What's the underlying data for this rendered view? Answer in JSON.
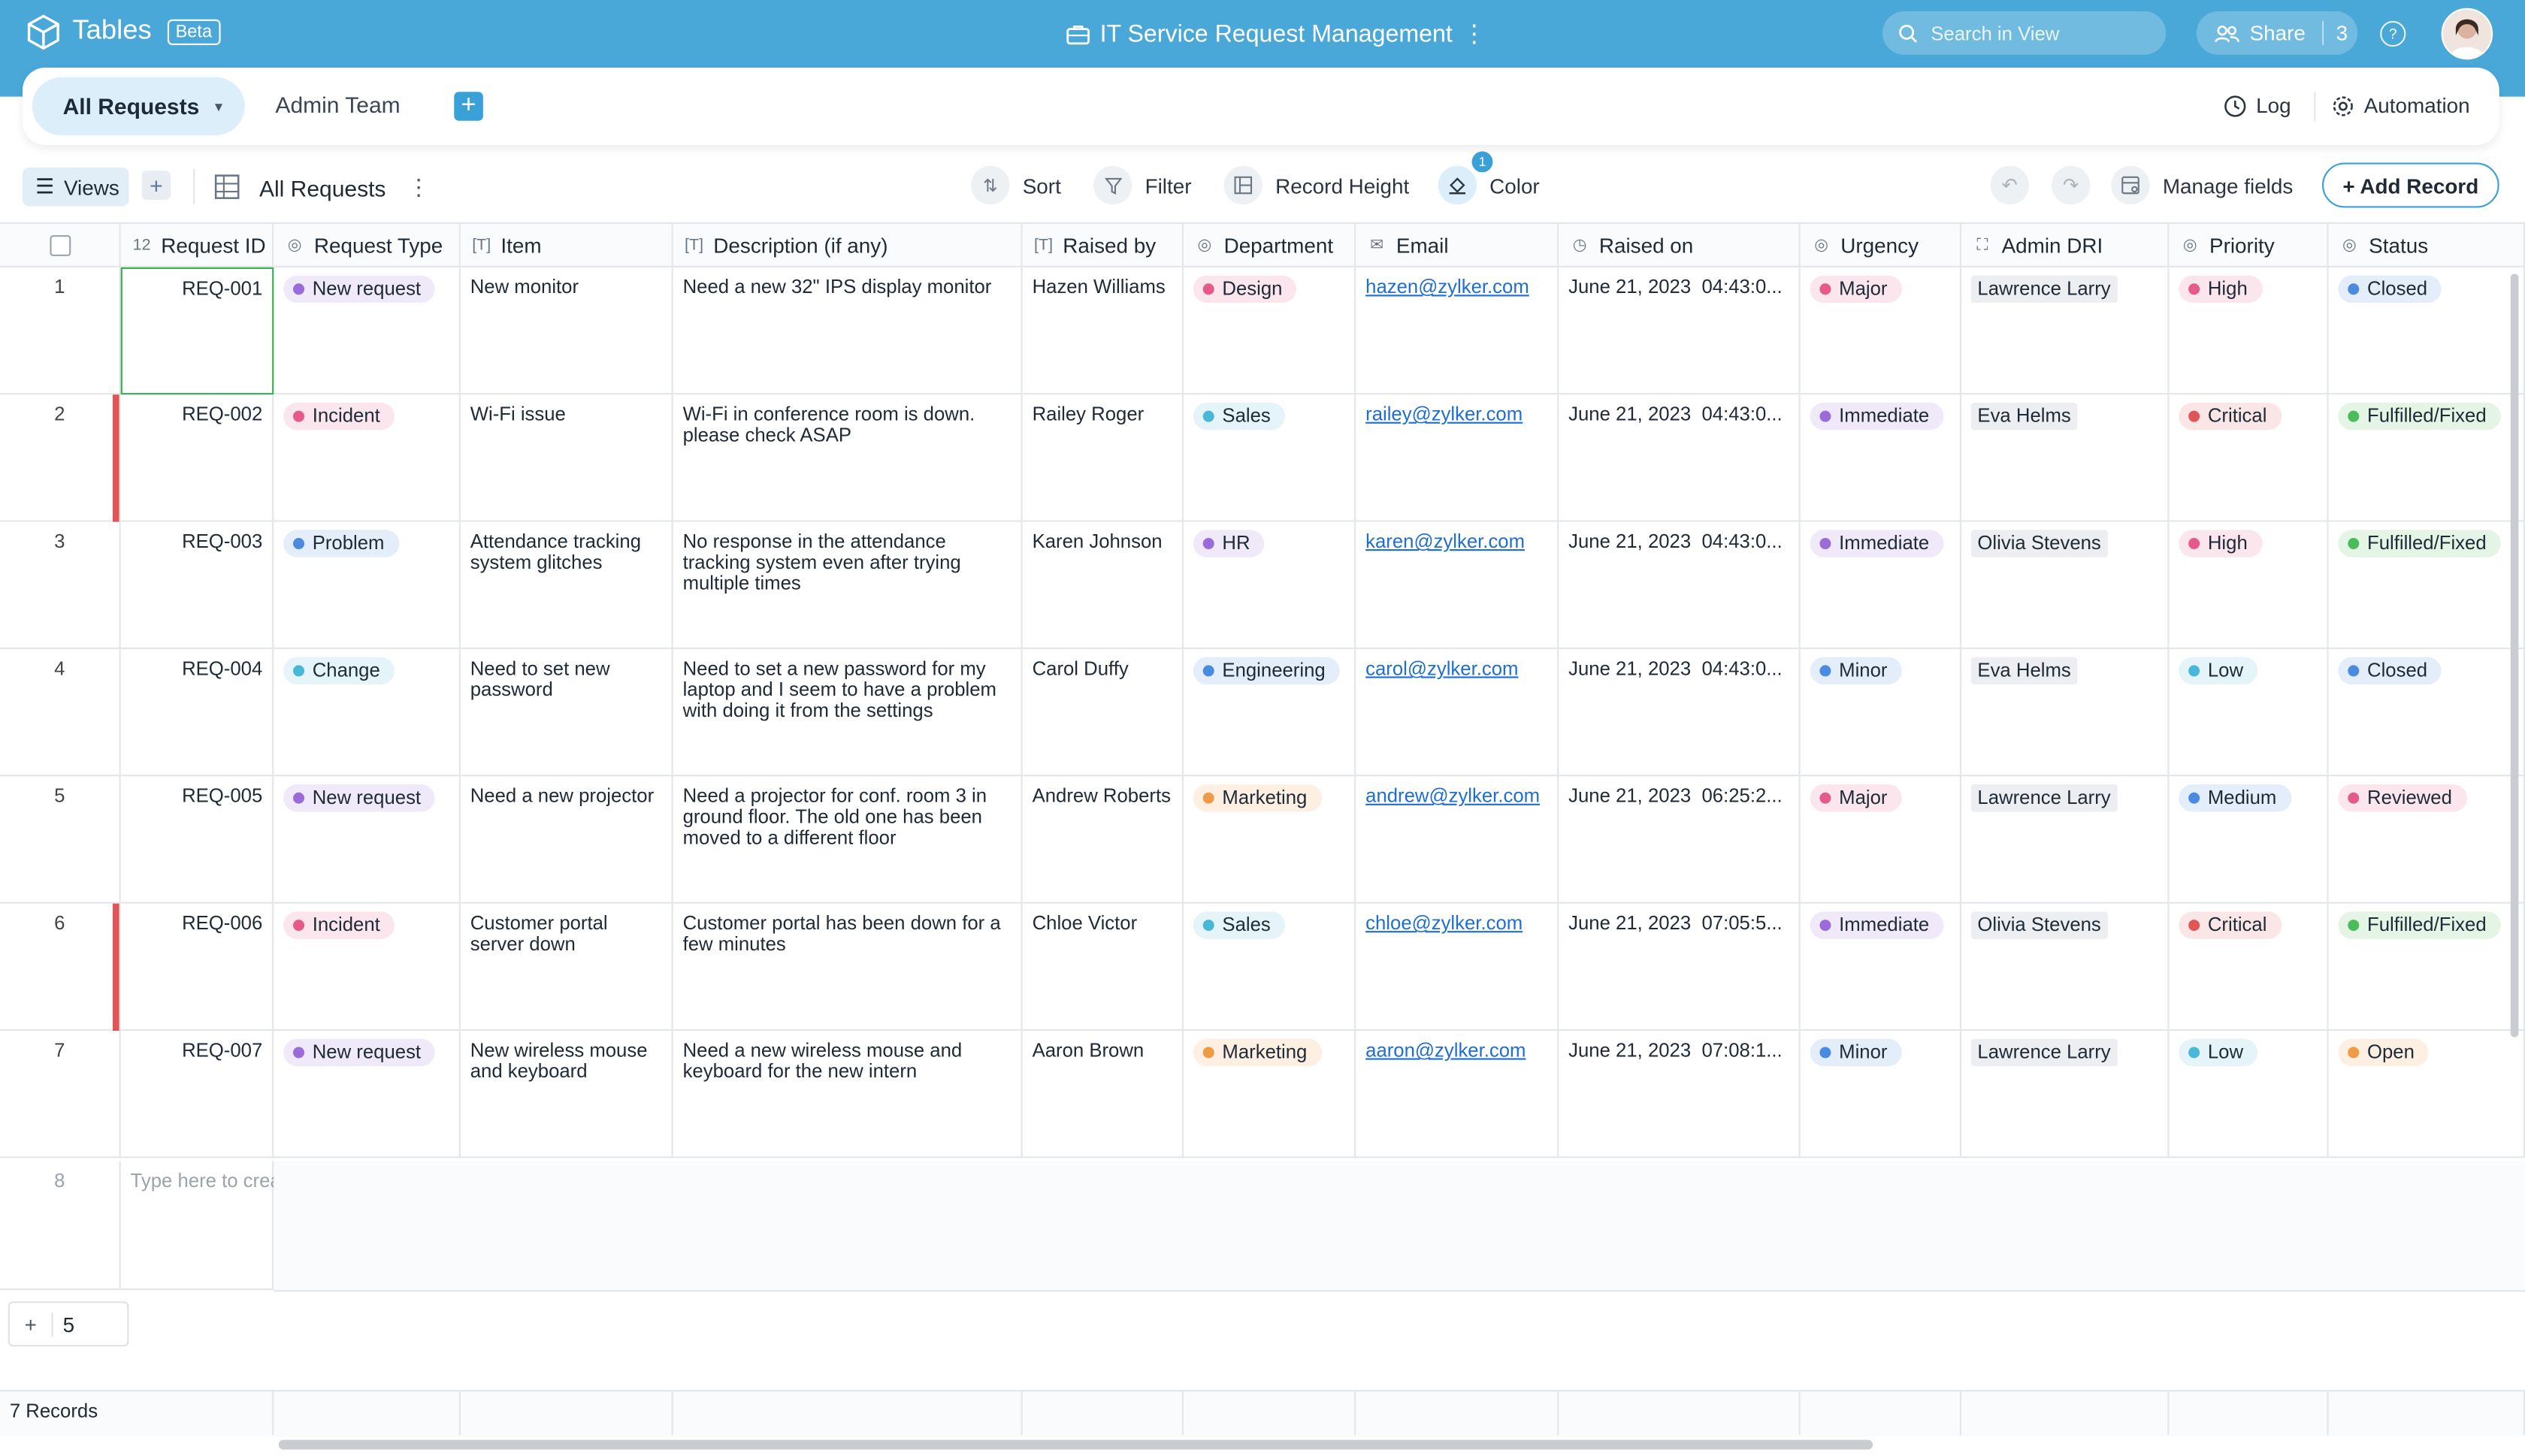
{
  "app": {
    "name": "Tables",
    "badge": "Beta"
  },
  "document": {
    "title": "IT Service Request Management"
  },
  "search": {
    "placeholder": "Search in View"
  },
  "share": {
    "label": "Share",
    "count": "3"
  },
  "tabs": [
    {
      "label": "All Requests",
      "active": true
    },
    {
      "label": "Admin Team",
      "active": false
    }
  ],
  "top_actions": {
    "log": "Log",
    "automation": "Automation"
  },
  "toolbar": {
    "views": "Views",
    "view_name": "All Requests",
    "sort": "Sort",
    "filter": "Filter",
    "record_height": "Record Height",
    "color": "Color",
    "color_badge": "1",
    "manage_fields": "Manage fields",
    "add_record": "+ Add Record"
  },
  "columns": [
    "Request ID",
    "Request Type",
    "Item",
    "Description (if any)",
    "Raised by",
    "Department",
    "Email",
    "Raised on",
    "Urgency",
    "Admin DRI",
    "Priority",
    "Status"
  ],
  "column_icons": [
    "number-icon",
    "single-select-icon",
    "text-icon",
    "text-icon",
    "text-icon",
    "single-select-icon",
    "email-icon",
    "datetime-icon",
    "single-select-icon",
    "user-icon",
    "single-select-icon",
    "single-select-icon"
  ],
  "colors": {
    "purple": "#9b6bd9",
    "pink": "#e55a8a",
    "teal": "#49b8d8",
    "blue": "#4a8be0",
    "orange": "#ef9b46",
    "red": "#e05555",
    "green": "#4cbb5a",
    "accent": "#3aa0d8"
  },
  "rows": [
    {
      "num": "1",
      "id": "REQ-001",
      "type": "New request",
      "type_color": "purple",
      "item": "New monitor",
      "desc": "Need a new 32\" IPS display monitor",
      "raised_by": "Hazen Williams",
      "dept": "Design",
      "dept_color": "pink",
      "email": "hazen@zylker.com",
      "date": "June 21, 2023",
      "time": "04:43:0...",
      "urgency": "Major",
      "urgency_color": "pink",
      "dri": "Lawrence Larry",
      "priority": "High",
      "priority_color": "pink",
      "status": "Closed",
      "status_color": "blue"
    },
    {
      "num": "2",
      "id": "REQ-002",
      "type": "Incident",
      "type_color": "pink",
      "item": "Wi-Fi issue",
      "desc": "Wi-Fi in conference room is down. please check ASAP",
      "raised_by": "Railey Roger",
      "dept": "Sales",
      "dept_color": "teal",
      "email": "railey@zylker.com",
      "date": "June 21, 2023",
      "time": "04:43:0...",
      "urgency": "Immediate",
      "urgency_color": "purple",
      "dri": "Eva Helms",
      "priority": "Critical",
      "priority_color": "red",
      "status": "Fulfilled/Fixed",
      "status_color": "green"
    },
    {
      "num": "3",
      "id": "REQ-003",
      "type": "Problem",
      "type_color": "blue",
      "item": "Attendance tracking system glitches",
      "desc": "No response in the attendance tracking system even after trying multiple times",
      "raised_by": "Karen Johnson",
      "dept": "HR",
      "dept_color": "purple",
      "email": "karen@zylker.com",
      "date": "June 21, 2023",
      "time": "04:43:0...",
      "urgency": "Immediate",
      "urgency_color": "purple",
      "dri": "Olivia Stevens",
      "priority": "High",
      "priority_color": "pink",
      "status": "Fulfilled/Fixed",
      "status_color": "green"
    },
    {
      "num": "4",
      "id": "REQ-004",
      "type": "Change",
      "type_color": "teal",
      "item": "Need to set new password",
      "desc": "Need to set a new password for my laptop and I seem to have a problem with doing it from the settings",
      "raised_by": "Carol Duffy",
      "dept": "Engineering",
      "dept_color": "blue",
      "email": "carol@zylker.com",
      "date": "June 21, 2023",
      "time": "04:43:0...",
      "urgency": "Minor",
      "urgency_color": "blue",
      "dri": "Eva Helms",
      "priority": "Low",
      "priority_color": "teal",
      "status": "Closed",
      "status_color": "blue"
    },
    {
      "num": "5",
      "id": "REQ-005",
      "type": "New request",
      "type_color": "purple",
      "item": "Need a new projector",
      "desc": "Need a projector for conf. room 3 in ground floor. The old one has been moved to a different floor",
      "raised_by": "Andrew Roberts",
      "dept": "Marketing",
      "dept_color": "orange",
      "email": "andrew@zylker.com",
      "date": "June 21, 2023",
      "time": "06:25:2...",
      "urgency": "Major",
      "urgency_color": "pink",
      "dri": "Lawrence Larry",
      "priority": "Medium",
      "priority_color": "blue",
      "status": "Reviewed",
      "status_color": "pink"
    },
    {
      "num": "6",
      "id": "REQ-006",
      "type": "Incident",
      "type_color": "pink",
      "item": "Customer portal server down",
      "desc": "Customer portal has been down for a few minutes",
      "raised_by": "Chloe Victor",
      "dept": "Sales",
      "dept_color": "teal",
      "email": "chloe@zylker.com",
      "date": "June 21, 2023",
      "time": "07:05:5...",
      "urgency": "Immediate",
      "urgency_color": "purple",
      "dri": "Olivia Stevens",
      "priority": "Critical",
      "priority_color": "red",
      "status": "Fulfilled/Fixed",
      "status_color": "green"
    },
    {
      "num": "7",
      "id": "REQ-007",
      "type": "New request",
      "type_color": "purple",
      "item": "New wireless mouse and keyboard",
      "desc": "Need a new wireless mouse and keyboard for the new intern",
      "raised_by": "Aaron Brown",
      "dept": "Marketing",
      "dept_color": "orange",
      "email": "aaron@zylker.com",
      "date": "June 21, 2023",
      "time": "07:08:1...",
      "urgency": "Minor",
      "urgency_color": "blue",
      "dri": "Lawrence Larry",
      "priority": "Low",
      "priority_color": "teal",
      "status": "Open",
      "status_color": "orange"
    }
  ],
  "new_row": {
    "num": "8",
    "placeholder": "Type here to create a record"
  },
  "add_rows": {
    "count": "5"
  },
  "footer": {
    "records": "7 Records"
  }
}
